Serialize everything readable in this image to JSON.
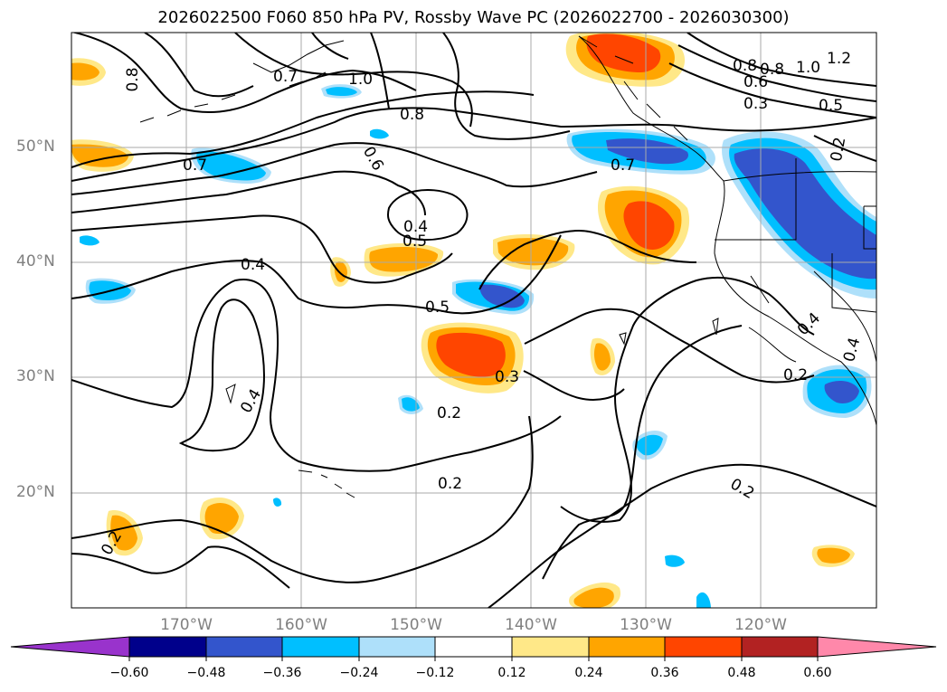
{
  "header": {
    "title": "2026022500 F060 850 hPa PV, Rossby Wave PC (2026022700 - 2026030300)"
  },
  "axes": {
    "lat_labels": [
      "50°N",
      "40°N",
      "30°N",
      "20°N"
    ],
    "lon_labels": [
      "170°W",
      "160°W",
      "150°W",
      "140°W",
      "130°W",
      "120°W"
    ]
  },
  "contour_labels": [
    "0.8",
    "0.7",
    "1.0",
    "0.8",
    "0.6",
    "0.7",
    "0.4",
    "0.5",
    "0.4",
    "0.5",
    "0.3",
    "0.2",
    "0.4",
    "0.2",
    "0.2",
    "0.7",
    "0.8",
    "0.6",
    "1.0",
    "1.2",
    "0.8",
    "0.3",
    "0.5",
    "0.4",
    "0.2",
    "0.4",
    "0.2",
    "0.2"
  ],
  "colorbar": {
    "tick_labels": [
      "−0.60",
      "−0.48",
      "−0.36",
      "−0.24",
      "−0.12",
      "0.12",
      "0.24",
      "0.36",
      "0.48",
      "0.60"
    ],
    "colors": [
      "#9933cc",
      "#00008b",
      "#3355cc",
      "#00bfff",
      "#aee0fa",
      "#ffffff",
      "#ffe888",
      "#ffa500",
      "#ff4500",
      "#b22222",
      "#ff88aa"
    ]
  }
}
